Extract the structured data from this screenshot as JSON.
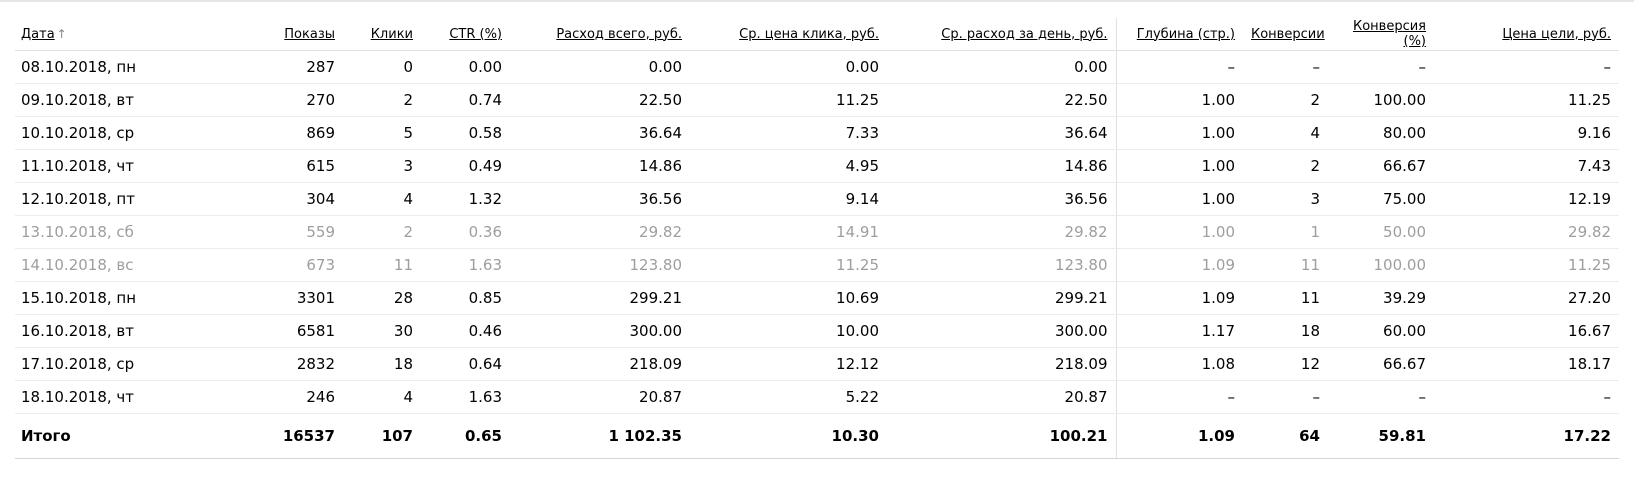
{
  "table": {
    "columns": [
      {
        "label": "Дата",
        "sort_icon": "↑"
      },
      {
        "label": "Показы"
      },
      {
        "label": "Клики"
      },
      {
        "label": "CTR (%)"
      },
      {
        "label": "Расход всего, руб."
      },
      {
        "label": "Ср. цена клика, руб."
      },
      {
        "label": "Ср. расход за день, руб."
      },
      {
        "label": "Глубина (стр.)"
      },
      {
        "label": "Конверсии"
      },
      {
        "label": "Конверсия (%)"
      },
      {
        "label": "Цена цели, руб."
      }
    ],
    "rows": [
      {
        "weekend": false,
        "cells": [
          "08.10.2018, пн",
          "287",
          "0",
          "0.00",
          "0.00",
          "0.00",
          "0.00",
          "–",
          "–",
          "–",
          "–"
        ]
      },
      {
        "weekend": false,
        "cells": [
          "09.10.2018, вт",
          "270",
          "2",
          "0.74",
          "22.50",
          "11.25",
          "22.50",
          "1.00",
          "2",
          "100.00",
          "11.25"
        ]
      },
      {
        "weekend": false,
        "cells": [
          "10.10.2018, ср",
          "869",
          "5",
          "0.58",
          "36.64",
          "7.33",
          "36.64",
          "1.00",
          "4",
          "80.00",
          "9.16"
        ]
      },
      {
        "weekend": false,
        "cells": [
          "11.10.2018, чт",
          "615",
          "3",
          "0.49",
          "14.86",
          "4.95",
          "14.86",
          "1.00",
          "2",
          "66.67",
          "7.43"
        ]
      },
      {
        "weekend": false,
        "cells": [
          "12.10.2018, пт",
          "304",
          "4",
          "1.32",
          "36.56",
          "9.14",
          "36.56",
          "1.00",
          "3",
          "75.00",
          "12.19"
        ]
      },
      {
        "weekend": true,
        "cells": [
          "13.10.2018, сб",
          "559",
          "2",
          "0.36",
          "29.82",
          "14.91",
          "29.82",
          "1.00",
          "1",
          "50.00",
          "29.82"
        ]
      },
      {
        "weekend": true,
        "cells": [
          "14.10.2018, вс",
          "673",
          "11",
          "1.63",
          "123.80",
          "11.25",
          "123.80",
          "1.09",
          "11",
          "100.00",
          "11.25"
        ]
      },
      {
        "weekend": false,
        "cells": [
          "15.10.2018, пн",
          "3301",
          "28",
          "0.85",
          "299.21",
          "10.69",
          "299.21",
          "1.09",
          "11",
          "39.29",
          "27.20"
        ]
      },
      {
        "weekend": false,
        "cells": [
          "16.10.2018, вт",
          "6581",
          "30",
          "0.46",
          "300.00",
          "10.00",
          "300.00",
          "1.17",
          "18",
          "60.00",
          "16.67"
        ]
      },
      {
        "weekend": false,
        "cells": [
          "17.10.2018, ср",
          "2832",
          "18",
          "0.64",
          "218.09",
          "12.12",
          "218.09",
          "1.08",
          "12",
          "66.67",
          "18.17"
        ]
      },
      {
        "weekend": false,
        "cells": [
          "18.10.2018, чт",
          "246",
          "4",
          "1.63",
          "20.87",
          "5.22",
          "20.87",
          "–",
          "–",
          "–",
          "–"
        ]
      }
    ],
    "total": {
      "cells": [
        "Итого",
        "16537",
        "107",
        "0.65",
        "1 102.35",
        "10.30",
        "100.21",
        "1.09",
        "64",
        "59.81",
        "17.22"
      ]
    }
  }
}
